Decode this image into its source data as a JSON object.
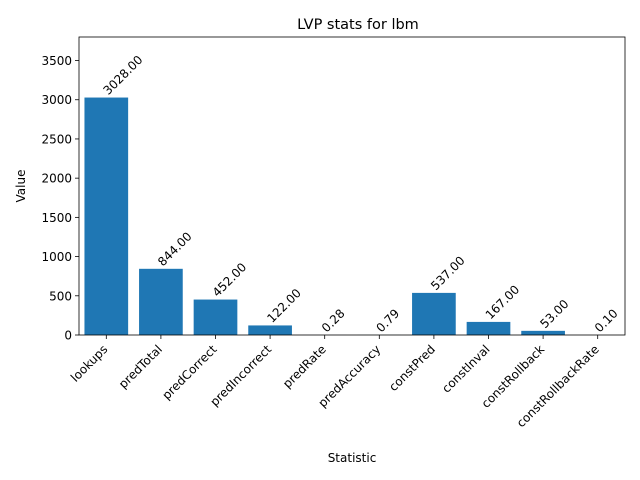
{
  "chart_data": {
    "type": "bar",
    "title": "LVP stats for lbm",
    "xlabel": "Statistic",
    "ylabel": "Value",
    "categories": [
      "lookups",
      "predTotal",
      "predCorrect",
      "predIncorrect",
      "predRate",
      "predAccuracy",
      "constPred",
      "constInval",
      "constRollback",
      "constRollbackRate"
    ],
    "values": [
      3028.0,
      844.0,
      452.0,
      122.0,
      0.28,
      0.79,
      537.0,
      167.0,
      53.0,
      0.1
    ],
    "value_labels": [
      "3028.00",
      "844.00",
      "452.00",
      "122.00",
      "0.28",
      "0.79",
      "537.00",
      "167.00",
      "53.00",
      "0.10"
    ],
    "ylim": [
      0,
      3800
    ],
    "yticks": [
      0,
      500,
      1000,
      1500,
      2000,
      2500,
      3000,
      3500
    ],
    "grid": false,
    "legend": "none",
    "bar_color": "#1f77b4"
  }
}
